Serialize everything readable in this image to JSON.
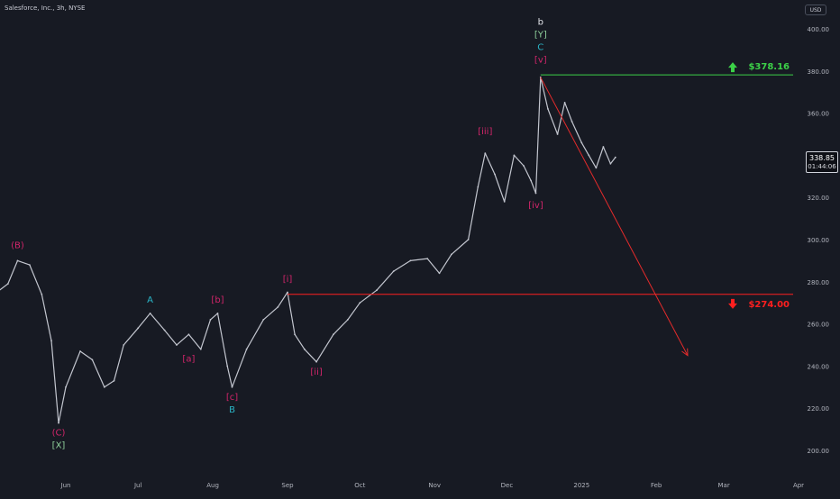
{
  "header": {
    "title": "Salesforce, Inc., 3h, NYSE",
    "currency": "USD"
  },
  "price_label": {
    "price": "338.85",
    "countdown": "01:44:06"
  },
  "colors": {
    "background": "#171a23",
    "price_series": "#c3c6cf",
    "axis_text": "#b2b5be",
    "target_up": "#3cd148",
    "target_down": "#ff1f1f",
    "forecast_arrow": "#e52b2b",
    "wave_pink": "#d2256a",
    "wave_teal": "#2ab5c7",
    "wave_green": "#8fd19b",
    "wave_white": "#e6e8ee"
  },
  "chart_data": {
    "type": "line",
    "title": "Salesforce, Inc., 3h, NYSE",
    "xlabel": "",
    "ylabel": "",
    "ylim": [
      190,
      410
    ],
    "y_ticks": [
      200,
      220,
      240,
      260,
      280,
      300,
      320,
      340,
      360,
      380,
      400
    ],
    "y_tick_labels": [
      "200.00",
      "220.00",
      "240.00",
      "260.00",
      "280.00",
      "300.00",
      "320.00",
      "340.00",
      "360.00",
      "380.00",
      "400.00"
    ],
    "x_ticks": [
      "2024-06-01",
      "2024-07-01",
      "2024-08-01",
      "2024-09-01",
      "2024-10-01",
      "2024-11-01",
      "2024-12-01",
      "2025-01-01",
      "2025-02-01",
      "2025-03-01",
      "2025-04-01"
    ],
    "x_tick_labels": [
      "Jun",
      "Jul",
      "Aug",
      "Sep",
      "Oct",
      "Nov",
      "Dec",
      "2025",
      "Feb",
      "Mar",
      "Apr"
    ],
    "grid": false,
    "series": [
      {
        "points": [
          [
            "2024-05-01",
            273
          ],
          [
            "2024-05-08",
            279
          ],
          [
            "2024-05-12",
            290
          ],
          [
            "2024-05-17",
            288
          ],
          [
            "2024-05-22",
            274
          ],
          [
            "2024-05-26",
            252
          ],
          [
            "2024-05-29",
            213
          ],
          [
            "2024-06-01",
            230
          ],
          [
            "2024-06-07",
            247
          ],
          [
            "2024-06-12",
            243
          ],
          [
            "2024-06-17",
            230
          ],
          [
            "2024-06-21",
            233
          ],
          [
            "2024-06-25",
            250
          ],
          [
            "2024-07-01",
            258
          ],
          [
            "2024-07-06",
            265
          ],
          [
            "2024-07-12",
            257
          ],
          [
            "2024-07-17",
            250
          ],
          [
            "2024-07-22",
            255
          ],
          [
            "2024-07-27",
            248
          ],
          [
            "2024-07-31",
            262
          ],
          [
            "2024-08-03",
            265
          ],
          [
            "2024-08-07",
            240
          ],
          [
            "2024-08-09",
            230
          ],
          [
            "2024-08-15",
            248
          ],
          [
            "2024-08-22",
            262
          ],
          [
            "2024-08-28",
            268
          ],
          [
            "2024-09-01",
            275
          ],
          [
            "2024-09-04",
            255
          ],
          [
            "2024-09-08",
            248
          ],
          [
            "2024-09-13",
            242
          ],
          [
            "2024-09-20",
            255
          ],
          [
            "2024-09-26",
            262
          ],
          [
            "2024-10-01",
            270
          ],
          [
            "2024-10-08",
            276
          ],
          [
            "2024-10-15",
            285
          ],
          [
            "2024-10-22",
            290
          ],
          [
            "2024-10-29",
            291
          ],
          [
            "2024-11-03",
            284
          ],
          [
            "2024-11-08",
            293
          ],
          [
            "2024-11-15",
            300
          ],
          [
            "2024-11-19",
            325
          ],
          [
            "2024-11-22",
            341
          ],
          [
            "2024-11-26",
            331
          ],
          [
            "2024-11-30",
            318
          ],
          [
            "2024-12-04",
            340
          ],
          [
            "2024-12-08",
            335
          ],
          [
            "2024-12-11",
            328
          ],
          [
            "2024-12-13",
            322
          ],
          [
            "2024-12-15",
            377
          ],
          [
            "2024-12-18",
            362
          ],
          [
            "2024-12-22",
            350
          ],
          [
            "2024-12-25",
            365
          ],
          [
            "2024-12-28",
            356
          ],
          [
            "2025-01-01",
            346
          ],
          [
            "2025-01-04",
            340
          ],
          [
            "2025-01-07",
            334
          ],
          [
            "2025-01-10",
            344
          ],
          [
            "2025-01-13",
            336
          ],
          [
            "2025-01-15",
            339
          ]
        ]
      }
    ],
    "targets": [
      {
        "label": "$378.16",
        "value": 378.16,
        "direction": "up",
        "color": "#3cd148"
      },
      {
        "label": "$274.00",
        "value": 274.0,
        "direction": "down",
        "color": "#ff1f1f"
      }
    ],
    "forecast_arrow": {
      "from": [
        "2024-12-15",
        377
      ],
      "to": [
        "2025-02-14",
        245
      ]
    },
    "annotations": [
      {
        "text": "(B)",
        "date": "2024-05-12",
        "value": 296,
        "color": "#d2256a"
      },
      {
        "text": "(C)",
        "date": "2024-05-29",
        "value": 207,
        "color": "#d2256a"
      },
      {
        "text": "[X]",
        "date": "2024-05-29",
        "value": 201,
        "color": "#8fd19b"
      },
      {
        "text": "A",
        "date": "2024-07-06",
        "value": 270,
        "color": "#2ab5c7"
      },
      {
        "text": "[b]",
        "date": "2024-08-03",
        "value": 270,
        "color": "#d2256a"
      },
      {
        "text": "[a]",
        "date": "2024-07-22",
        "value": 242,
        "color": "#d2256a"
      },
      {
        "text": "[c]",
        "date": "2024-08-09",
        "value": 224,
        "color": "#d2256a"
      },
      {
        "text": "B",
        "date": "2024-08-09",
        "value": 218,
        "color": "#2ab5c7"
      },
      {
        "text": "[i]",
        "date": "2024-09-01",
        "value": 280,
        "color": "#d2256a"
      },
      {
        "text": "[ii]",
        "date": "2024-09-13",
        "value": 236,
        "color": "#d2256a"
      },
      {
        "text": "[iii]",
        "date": "2024-11-22",
        "value": 350,
        "color": "#d2256a"
      },
      {
        "text": "[iv]",
        "date": "2024-12-13",
        "value": 315,
        "color": "#d2256a"
      },
      {
        "text": "b",
        "date": "2024-12-15",
        "value": 402,
        "color": "#e6e8ee"
      },
      {
        "text": "[Y]",
        "date": "2024-12-15",
        "value": 396,
        "color": "#8fd19b"
      },
      {
        "text": "C",
        "date": "2024-12-15",
        "value": 390,
        "color": "#2ab5c7"
      },
      {
        "text": "[v]",
        "date": "2024-12-15",
        "value": 384,
        "color": "#d2256a"
      }
    ]
  }
}
